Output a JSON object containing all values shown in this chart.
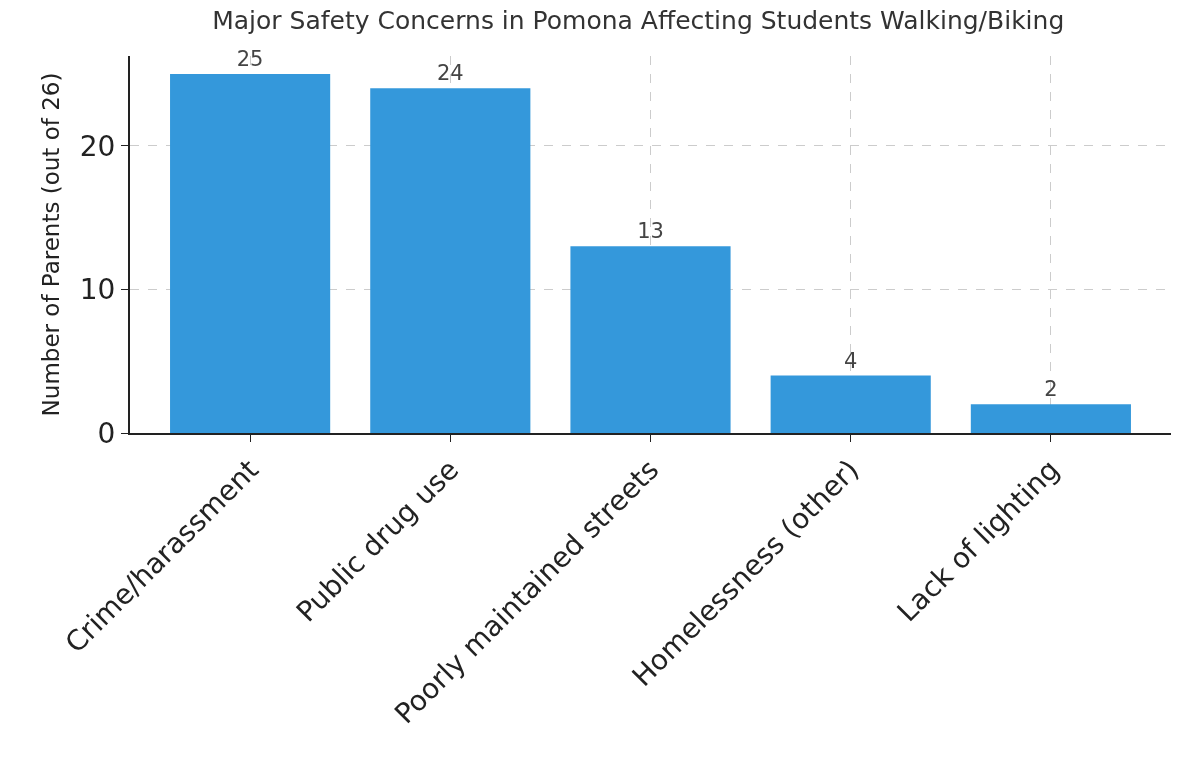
{
  "chart_data": {
    "type": "bar",
    "title": "Major Safety Concerns in Pomona Affecting Students Walking/Biking",
    "ylabel": "Number of Parents (out of 26)",
    "categories": [
      "Crime/harassment",
      "Public drug use",
      "Poorly maintained streets",
      "Homelessness (other)",
      "Lack of lighting"
    ],
    "values": [
      25,
      24,
      13,
      4,
      2
    ],
    "color": "#3498db",
    "ylim": [
      0,
      26.25
    ],
    "yticks": [
      0,
      10,
      20
    ],
    "grid": true,
    "data_labels": true,
    "line_style": "dashed"
  }
}
